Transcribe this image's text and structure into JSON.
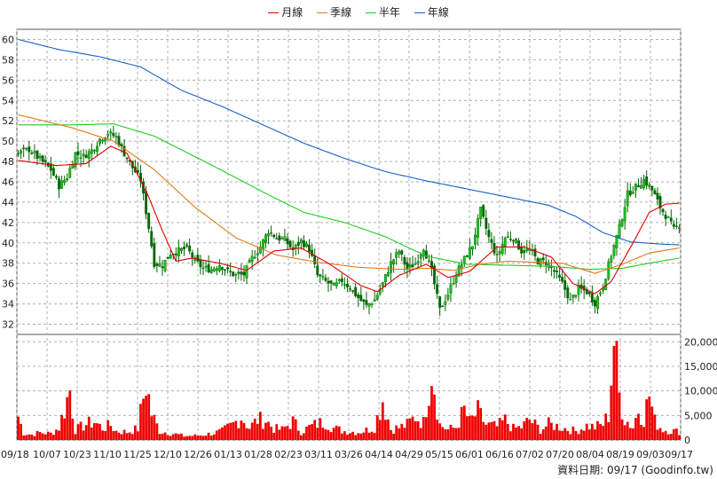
{
  "legend": {
    "items": [
      {
        "label": "月線",
        "color": "#e00000"
      },
      {
        "label": "季線",
        "color": "#e07a1a"
      },
      {
        "label": "半年",
        "color": "#22cc22"
      },
      {
        "label": "年線",
        "color": "#1a5fc8"
      }
    ]
  },
  "footer": {
    "text": "資料日期: 09/17  (Goodinfo.tw)"
  },
  "colors": {
    "up": "#22bb22",
    "down": "#006600",
    "volume": "#ee0000",
    "grid": "#b0b0b0"
  },
  "chart_data": {
    "type": "candlestick",
    "price_axis": {
      "min": 31,
      "max": 61,
      "ticks": [
        32,
        34,
        36,
        38,
        40,
        42,
        44,
        46,
        48,
        50,
        52,
        54,
        56,
        58,
        60
      ]
    },
    "volume_axis": {
      "min": 0,
      "max": 21500,
      "ticks": [
        0,
        5000,
        10000,
        15000,
        20000
      ],
      "tick_labels": [
        "0",
        "5,000",
        "10,000",
        "15,000",
        "20,000"
      ]
    },
    "x_labels": [
      "09/18",
      "10/07",
      "10/23",
      "11/10",
      "11/25",
      "12/10",
      "12/26",
      "01/13",
      "01/28",
      "02/23",
      "03/11",
      "03/26",
      "04/14",
      "04/29",
      "05/15",
      "06/01",
      "06/16",
      "07/02",
      "07/20",
      "08/04",
      "08/19",
      "09/03",
      "09/17"
    ],
    "n_days": 244,
    "close_anchors": [
      [
        0,
        48.8
      ],
      [
        4,
        49.2
      ],
      [
        8,
        48.2
      ],
      [
        12,
        47.2
      ],
      [
        15,
        45.6
      ],
      [
        18,
        46.5
      ],
      [
        21,
        48.8
      ],
      [
        24,
        48.5
      ],
      [
        27,
        49.1
      ],
      [
        30,
        50.2
      ],
      [
        33,
        50.8
      ],
      [
        36,
        50.4
      ],
      [
        39,
        48.8
      ],
      [
        42,
        47.4
      ],
      [
        45,
        46.2
      ],
      [
        48,
        41.5
      ],
      [
        50,
        38.0
      ],
      [
        53,
        37.8
      ],
      [
        56,
        39.0
      ],
      [
        59,
        39.2
      ],
      [
        62,
        39.5
      ],
      [
        65,
        38.2
      ],
      [
        68,
        37.5
      ],
      [
        71,
        37.4
      ],
      [
        74,
        37.9
      ],
      [
        77,
        37.2
      ],
      [
        80,
        36.8
      ],
      [
        83,
        36.9
      ],
      [
        86,
        38.5
      ],
      [
        89,
        39.6
      ],
      [
        92,
        41.2
      ],
      [
        95,
        40.5
      ],
      [
        98,
        40.3
      ],
      [
        101,
        39.3
      ],
      [
        104,
        40.2
      ],
      [
        107,
        39.4
      ],
      [
        110,
        36.8
      ],
      [
        113,
        36.2
      ],
      [
        116,
        35.7
      ],
      [
        119,
        36.3
      ],
      [
        122,
        35.6
      ],
      [
        125,
        34.6
      ],
      [
        128,
        33.8
      ],
      [
        131,
        34.4
      ],
      [
        134,
        36.0
      ],
      [
        137,
        38.0
      ],
      [
        140,
        39.2
      ],
      [
        143,
        37.4
      ],
      [
        146,
        38.0
      ],
      [
        149,
        39.6
      ],
      [
        152,
        37.2
      ],
      [
        155,
        33.4
      ],
      [
        158,
        35.0
      ],
      [
        161,
        37.0
      ],
      [
        164,
        38.4
      ],
      [
        167,
        39.8
      ],
      [
        170,
        43.2
      ],
      [
        173,
        40.5
      ],
      [
        176,
        38.6
      ],
      [
        179,
        40.5
      ],
      [
        182,
        40.5
      ],
      [
        185,
        39.2
      ],
      [
        188,
        39.3
      ],
      [
        191,
        38.2
      ],
      [
        194,
        38.1
      ],
      [
        197,
        37.2
      ],
      [
        200,
        36.0
      ],
      [
        203,
        34.3
      ],
      [
        206,
        35.5
      ],
      [
        209,
        35.2
      ],
      [
        212,
        34.1
      ],
      [
        215,
        35.8
      ],
      [
        218,
        38.8
      ],
      [
        221,
        41.5
      ],
      [
        224,
        44.8
      ],
      [
        227,
        45.5
      ],
      [
        230,
        46.2
      ],
      [
        233,
        45.2
      ],
      [
        236,
        43.5
      ],
      [
        239,
        42.3
      ],
      [
        241,
        41.3
      ],
      [
        243,
        41.8
      ]
    ],
    "volume_anchors": [
      [
        0,
        4800
      ],
      [
        2,
        1400
      ],
      [
        5,
        1100
      ],
      [
        8,
        1500
      ],
      [
        12,
        1300
      ],
      [
        15,
        2500
      ],
      [
        19,
        10200
      ],
      [
        21,
        2000
      ],
      [
        25,
        3200
      ],
      [
        28,
        3700
      ],
      [
        31,
        2400
      ],
      [
        34,
        3000
      ],
      [
        36,
        1800
      ],
      [
        40,
        1600
      ],
      [
        44,
        2300
      ],
      [
        47,
        11800
      ],
      [
        49,
        5300
      ],
      [
        52,
        1800
      ],
      [
        57,
        1300
      ],
      [
        61,
        800
      ],
      [
        66,
        900
      ],
      [
        71,
        1300
      ],
      [
        75,
        1800
      ],
      [
        79,
        3200
      ],
      [
        82,
        4700
      ],
      [
        85,
        2500
      ],
      [
        88,
        4100
      ],
      [
        91,
        4000
      ],
      [
        94,
        2300
      ],
      [
        97,
        2100
      ],
      [
        101,
        3800
      ],
      [
        104,
        1700
      ],
      [
        107,
        2600
      ],
      [
        110,
        3300
      ],
      [
        113,
        3700
      ],
      [
        116,
        2400
      ],
      [
        120,
        1800
      ],
      [
        125,
        1600
      ],
      [
        128,
        2000
      ],
      [
        131,
        2600
      ],
      [
        134,
        8400
      ],
      [
        137,
        2200
      ],
      [
        140,
        2500
      ],
      [
        143,
        3100
      ],
      [
        146,
        4800
      ],
      [
        149,
        3500
      ],
      [
        152,
        15300
      ],
      [
        155,
        3100
      ],
      [
        158,
        2100
      ],
      [
        161,
        2600
      ],
      [
        164,
        6100
      ],
      [
        166,
        3600
      ],
      [
        169,
        5700
      ],
      [
        172,
        3100
      ],
      [
        176,
        2700
      ],
      [
        179,
        4000
      ],
      [
        182,
        2300
      ],
      [
        185,
        2600
      ],
      [
        188,
        4100
      ],
      [
        192,
        2100
      ],
      [
        195,
        3200
      ],
      [
        199,
        2700
      ],
      [
        202,
        2200
      ],
      [
        205,
        1800
      ],
      [
        209,
        2900
      ],
      [
        212,
        2600
      ],
      [
        215,
        3200
      ],
      [
        217,
        5100
      ],
      [
        219,
        20700
      ],
      [
        221,
        9100
      ],
      [
        223,
        4300
      ],
      [
        226,
        2600
      ],
      [
        228,
        6300
      ],
      [
        230,
        4400
      ],
      [
        232,
        9200
      ],
      [
        234,
        3800
      ],
      [
        237,
        2100
      ],
      [
        240,
        1900
      ],
      [
        243,
        1700
      ]
    ],
    "sma20_anchors": [
      [
        0,
        48.1
      ],
      [
        14,
        47.6
      ],
      [
        25,
        47.8
      ],
      [
        34,
        49.5
      ],
      [
        40,
        48.8
      ],
      [
        48,
        44.5
      ],
      [
        53,
        41.2
      ],
      [
        58,
        38.2
      ],
      [
        64,
        38.5
      ],
      [
        74,
        38.0
      ],
      [
        84,
        37.3
      ],
      [
        94,
        39.2
      ],
      [
        104,
        39.5
      ],
      [
        114,
        38.0
      ],
      [
        126,
        35.8
      ],
      [
        132,
        35.2
      ],
      [
        140,
        36.8
      ],
      [
        150,
        37.9
      ],
      [
        158,
        36.6
      ],
      [
        166,
        37.2
      ],
      [
        176,
        39.6
      ],
      [
        186,
        39.6
      ],
      [
        196,
        38.6
      ],
      [
        204,
        36.0
      ],
      [
        212,
        35.0
      ],
      [
        218,
        36.2
      ],
      [
        226,
        40.0
      ],
      [
        232,
        43.0
      ],
      [
        238,
        43.8
      ],
      [
        243,
        43.9
      ]
    ],
    "sma60_anchors": [
      [
        0,
        52.6
      ],
      [
        20,
        51.3
      ],
      [
        35,
        50.0
      ],
      [
        50,
        47.2
      ],
      [
        65,
        43.5
      ],
      [
        80,
        40.5
      ],
      [
        95,
        38.8
      ],
      [
        110,
        38.1
      ],
      [
        125,
        37.6
      ],
      [
        140,
        37.4
      ],
      [
        150,
        37.5
      ],
      [
        160,
        37.3
      ],
      [
        170,
        37.9
      ],
      [
        180,
        38.2
      ],
      [
        190,
        38.1
      ],
      [
        200,
        38.0
      ],
      [
        212,
        37.0
      ],
      [
        222,
        37.9
      ],
      [
        232,
        39.0
      ],
      [
        243,
        39.5
      ]
    ],
    "sma120_anchors": [
      [
        0,
        51.6
      ],
      [
        20,
        51.6
      ],
      [
        35,
        51.7
      ],
      [
        50,
        50.5
      ],
      [
        70,
        47.8
      ],
      [
        90,
        45.0
      ],
      [
        105,
        43.0
      ],
      [
        120,
        42.0
      ],
      [
        135,
        40.6
      ],
      [
        150,
        38.7
      ],
      [
        165,
        37.9
      ],
      [
        180,
        37.8
      ],
      [
        195,
        37.7
      ],
      [
        210,
        37.4
      ],
      [
        222,
        37.5
      ],
      [
        232,
        38.0
      ],
      [
        243,
        38.5
      ]
    ],
    "sma240_anchors": [
      [
        0,
        60.0
      ],
      [
        15,
        59.0
      ],
      [
        30,
        58.3
      ],
      [
        45,
        57.3
      ],
      [
        60,
        55.0
      ],
      [
        75,
        53.4
      ],
      [
        90,
        51.6
      ],
      [
        105,
        49.8
      ],
      [
        120,
        48.3
      ],
      [
        135,
        47.0
      ],
      [
        150,
        46.1
      ],
      [
        165,
        45.3
      ],
      [
        180,
        44.5
      ],
      [
        195,
        43.7
      ],
      [
        205,
        42.6
      ],
      [
        215,
        41.0
      ],
      [
        225,
        40.1
      ],
      [
        235,
        39.9
      ],
      [
        243,
        39.8
      ]
    ]
  }
}
